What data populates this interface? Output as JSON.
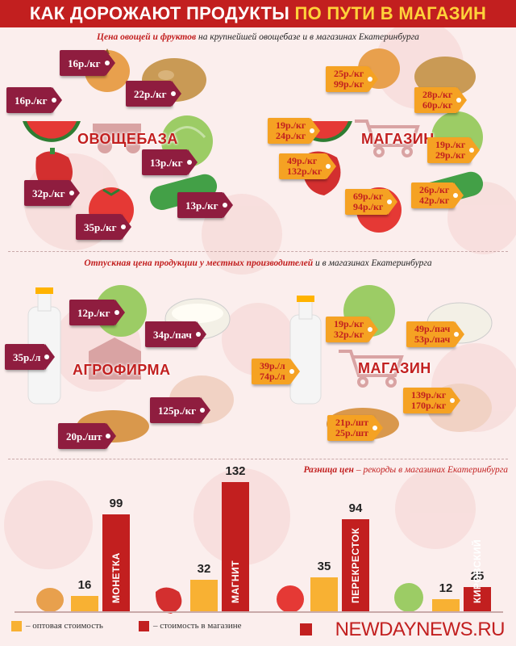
{
  "header": {
    "title_part1": "КАК ДОРОЖАЮТ ПРОДУКТЫ ",
    "title_part2": "ПО ПУТИ В МАГАЗИН"
  },
  "section1": {
    "subtitle_red": "Цена овощей и фруктов",
    "subtitle_rest": " на крупнейшей овощебазе и в магазинах Екатеринбурга",
    "left_label": "ОВОЩЕБАЗА",
    "right_label": "МАГАЗИН",
    "left_tags": [
      "16р./кг",
      "16р./кг",
      "22р./кг",
      "13р./кг",
      "32р./кг",
      "13р./кг",
      "35р./кг"
    ],
    "right_tags": [
      {
        "l1": "25р./кг",
        "l2": "99р./кг"
      },
      {
        "l1": "28р./кг",
        "l2": "60р./кг"
      },
      {
        "l1": "19р./кг",
        "l2": "24р./кг"
      },
      {
        "l1": "19р./кг",
        "l2": "29р./кг"
      },
      {
        "l1": "49р./кг",
        "l2": "132р./кг"
      },
      {
        "l1": "26р./кг",
        "l2": "42р./кг"
      },
      {
        "l1": "69р./кг",
        "l2": "94р./кг"
      }
    ]
  },
  "section2": {
    "subtitle_red": "Отпускная цена продукции у местных производителей",
    "subtitle_rest": "  и в магазинах Екатеринбурга",
    "left_label": "АГРОФИРМА",
    "right_label": "МАГАЗИН",
    "left_tags": [
      "12р./кг",
      "34р./пач",
      "35р./л",
      "125р./кг",
      "20р./шт"
    ],
    "right_tags": [
      {
        "l1": "19р./кг",
        "l2": "32р./кг"
      },
      {
        "l1": "49р./пач",
        "l2": "53р./пач"
      },
      {
        "l1": "39р./л",
        "l2": "74р./л"
      },
      {
        "l1": "139р./кг",
        "l2": "170р./кг"
      },
      {
        "l1": "21р./шт",
        "l2": "25р./шт"
      }
    ]
  },
  "section3": {
    "subtitle_red": "Разница цен",
    "subtitle_rest": " – рекорды в магазинах Екатеринбурга"
  },
  "chart_data": {
    "type": "bar",
    "categories": [
      "МОНЕТКА",
      "МАГНИТ",
      "ПЕРЕКРЕСТОК",
      "КИРОВСКИЙ"
    ],
    "series": [
      {
        "name": "– оптовая стоимость",
        "values": [
          16,
          32,
          35,
          12
        ],
        "color": "#f8b133"
      },
      {
        "name": "– стоимость в магазине",
        "values": [
          99,
          132,
          94,
          25
        ],
        "color": "#c21f1f"
      }
    ],
    "ylim": [
      0,
      132
    ],
    "legend_position": "bottom-left"
  },
  "footer": {
    "brand": "NEWDAYNEWS.RU"
  },
  "colors": {
    "accent": "#c21f1f",
    "gold": "#ffd23a",
    "tag_maroon": "#8f1d3f",
    "tag_orange": "#f5a223"
  }
}
